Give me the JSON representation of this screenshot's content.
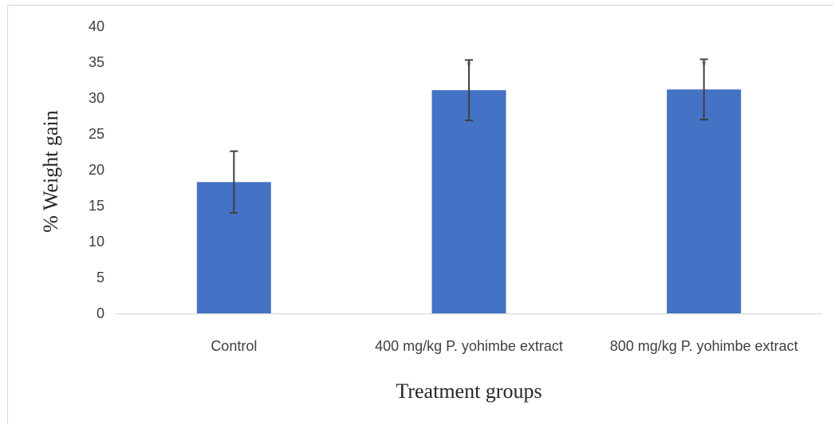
{
  "chart_data": {
    "type": "bar",
    "title": "",
    "xlabel": "Treatment groups",
    "ylabel": "% Weight gain",
    "categories": [
      "Control",
      "400 mg/kg P. yohimbe extract",
      "800 mg/kg P. yohimbe extract"
    ],
    "values": [
      18.3,
      31.1,
      31.2
    ],
    "error": [
      4.3,
      4.2,
      4.2
    ],
    "significance": [
      "",
      "*",
      "*"
    ],
    "ylim": [
      0,
      40
    ],
    "yticks": [
      0,
      5,
      10,
      15,
      20,
      25,
      30,
      35,
      40
    ],
    "grid": false,
    "legend": "none",
    "colors": {
      "bar": "#4472c4",
      "error_bar": "#404040",
      "axis": "#d9d9d9"
    }
  }
}
